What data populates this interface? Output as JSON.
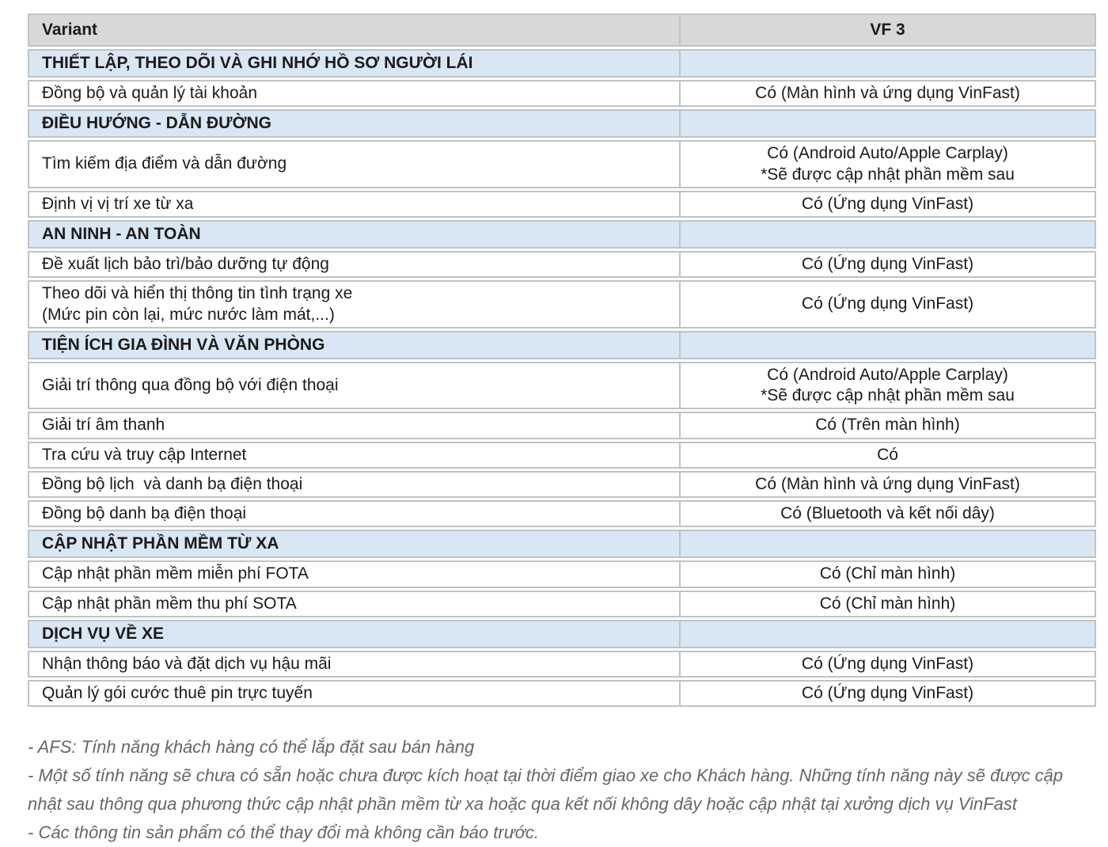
{
  "colors": {
    "header_bg": "#d8d8d8",
    "section_bg": "#d9e7f4",
    "border": "#bfc3c6",
    "text": "#1b1b1b",
    "footnote_text": "#666666"
  },
  "table": {
    "columns": [
      "Variant",
      "VF 3"
    ],
    "rows": [
      {
        "type": "section",
        "label": "THIẾT LẬP, THEO DÕI VÀ GHI NHỚ HỒ SƠ NGƯỜI LÁI",
        "value": ""
      },
      {
        "type": "feature",
        "label": "Đồng bộ và quản lý tài khoản",
        "value": "Có (Màn hình và ứng dụng VinFast)"
      },
      {
        "type": "section",
        "label": "ĐIỀU HƯỚNG - DẪN ĐƯỜNG",
        "value": ""
      },
      {
        "type": "feature",
        "label": "Tìm kiếm địa điểm và dẫn đường",
        "value": "Có (Android Auto/Apple Carplay)\n*Sẽ được cập nhật phần mềm sau"
      },
      {
        "type": "feature",
        "label": "Định vị vị trí xe từ xa",
        "value": "Có (Ứng dụng VinFast)"
      },
      {
        "type": "section",
        "label": "AN NINH - AN TOÀN",
        "value": ""
      },
      {
        "type": "feature",
        "label": "Đề xuất lịch bảo trì/bảo dưỡng tự động",
        "value": "Có (Ứng dụng VinFast)"
      },
      {
        "type": "feature",
        "label": "Theo dõi và hiển thị thông tin tình trạng xe\n(Mức pin còn lại, mức nước làm mát,...)",
        "value": "Có (Ứng dụng VinFast)"
      },
      {
        "type": "section",
        "label": "TIỆN ÍCH GIA ĐÌNH VÀ VĂN PHÒNG",
        "value": ""
      },
      {
        "type": "feature",
        "label": "Giải trí thông qua đồng bộ với điện thoại",
        "value": "Có (Android Auto/Apple Carplay)\n*Sẽ được cập nhật phần mềm sau"
      },
      {
        "type": "feature",
        "label": "Giải trí âm thanh",
        "value": "Có (Trên màn hình)"
      },
      {
        "type": "feature",
        "label": "Tra cứu và truy cập Internet",
        "value": "Có"
      },
      {
        "type": "feature",
        "label": "Đồng bộ lịch  và danh bạ điện thoại",
        "value": "Có (Màn hình và ứng dụng VinFast)"
      },
      {
        "type": "feature",
        "label": "Đồng bộ danh bạ điện thoại",
        "value": "Có (Bluetooth và kết nối dây)"
      },
      {
        "type": "section",
        "label": "CẬP NHẬT PHẦN MỀM TỪ XA",
        "value": ""
      },
      {
        "type": "feature",
        "label": "Cập nhật phần mềm miễn phí FOTA",
        "value": "Có (Chỉ màn hình)"
      },
      {
        "type": "feature",
        "label": "Cập nhật phần mềm thu phí SOTA",
        "value": "Có (Chỉ màn hình)"
      },
      {
        "type": "section",
        "label": "DỊCH VỤ VỀ XE",
        "value": ""
      },
      {
        "type": "feature",
        "label": "Nhận thông báo và đặt dịch vụ hậu mãi",
        "value": "Có (Ứng dụng VinFast)"
      },
      {
        "type": "feature",
        "label": "Quản lý gói cước thuê pin trực tuyến",
        "value": "Có (Ứng dụng VinFast)"
      }
    ]
  },
  "footnotes": [
    "- AFS: Tính năng khách hàng có thể lắp đặt sau bán hàng",
    "- Một số tính năng sẽ chưa có sẵn hoặc chưa được kích hoạt tại thời điểm giao xe cho Khách hàng. Những tính năng này sẽ được cập nhật sau thông qua phương thức cập nhật phần mềm từ xa hoặc qua kết nối không dây hoặc cập nhật tại xưởng dịch vụ VinFast",
    "- Các thông tin sản phẩm có thể thay đổi mà không cần báo trước."
  ]
}
